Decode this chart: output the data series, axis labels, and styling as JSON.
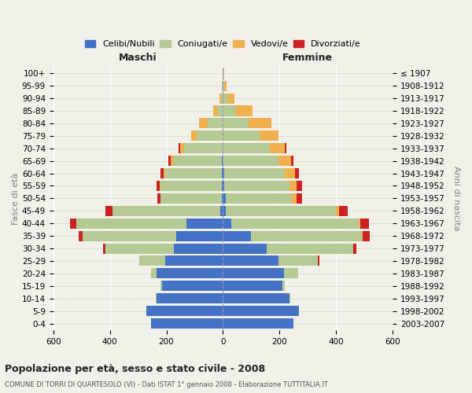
{
  "age_groups": [
    "0-4",
    "5-9",
    "10-14",
    "15-19",
    "20-24",
    "25-29",
    "30-34",
    "35-39",
    "40-44",
    "45-49",
    "50-54",
    "55-59",
    "60-64",
    "65-69",
    "70-74",
    "75-79",
    "80-84",
    "85-89",
    "90-94",
    "95-99",
    "100+"
  ],
  "birth_years": [
    "2003-2007",
    "1998-2002",
    "1993-1997",
    "1988-1992",
    "1983-1987",
    "1978-1982",
    "1973-1977",
    "1968-1972",
    "1963-1967",
    "1958-1962",
    "1953-1957",
    "1948-1952",
    "1943-1947",
    "1938-1942",
    "1933-1937",
    "1928-1932",
    "1923-1927",
    "1918-1922",
    "1913-1917",
    "1908-1912",
    "≤ 1907"
  ],
  "male": {
    "celibe": [
      255,
      270,
      235,
      215,
      235,
      205,
      175,
      165,
      130,
      10,
      5,
      5,
      5,
      5,
      2,
      2,
      0,
      0,
      0,
      0,
      0
    ],
    "coniugato": [
      0,
      0,
      2,
      5,
      20,
      90,
      240,
      330,
      390,
      380,
      215,
      215,
      200,
      170,
      135,
      90,
      55,
      20,
      8,
      3,
      2
    ],
    "vedovo": [
      0,
      0,
      0,
      0,
      0,
      0,
      0,
      0,
      0,
      0,
      2,
      3,
      5,
      10,
      15,
      20,
      30,
      15,
      5,
      2,
      0
    ],
    "divorziato": [
      0,
      0,
      0,
      0,
      0,
      0,
      8,
      15,
      20,
      25,
      10,
      12,
      12,
      8,
      5,
      0,
      0,
      0,
      0,
      0,
      0
    ]
  },
  "female": {
    "nubile": [
      250,
      270,
      235,
      210,
      215,
      195,
      155,
      100,
      30,
      10,
      10,
      5,
      5,
      0,
      0,
      0,
      0,
      0,
      0,
      0,
      0
    ],
    "coniugata": [
      0,
      0,
      2,
      10,
      50,
      140,
      305,
      390,
      450,
      390,
      235,
      230,
      215,
      195,
      165,
      130,
      90,
      45,
      15,
      5,
      2
    ],
    "vedova": [
      0,
      0,
      0,
      0,
      0,
      0,
      2,
      5,
      5,
      10,
      15,
      25,
      35,
      45,
      55,
      65,
      80,
      60,
      25,
      8,
      2
    ],
    "divorziata": [
      0,
      0,
      0,
      0,
      0,
      5,
      10,
      25,
      30,
      30,
      20,
      20,
      15,
      10,
      5,
      0,
      0,
      0,
      0,
      0,
      0
    ]
  },
  "colors": {
    "celibe": "#4472c4",
    "coniugato": "#b5c994",
    "vedovo": "#f0b050",
    "divorziato": "#cc2222"
  },
  "title": "Popolazione per età, sesso e stato civile - 2008",
  "subtitle": "COMUNE DI TORRI DI QUARTESOLO (VI) - Dati ISTAT 1° gennaio 2008 - Elaborazione TUTTITALIA.IT",
  "xlabel_left": "Maschi",
  "xlabel_right": "Femmine",
  "ylabel_left": "Fasce di età",
  "ylabel_right": "Anni di nascita",
  "xlim": 600,
  "background_color": "#f0f0e8"
}
